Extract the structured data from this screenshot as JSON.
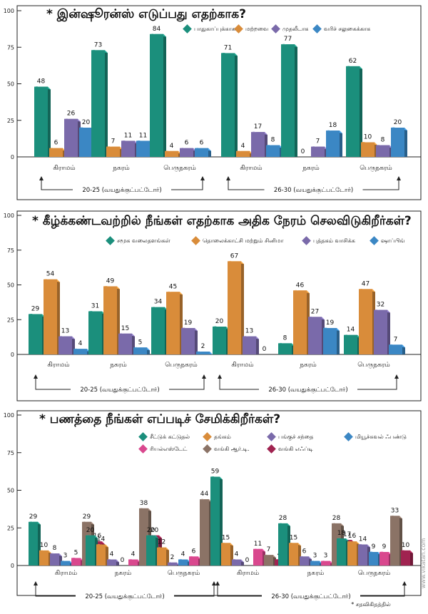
{
  "colors": {
    "teal": "#1b8f7c",
    "orange": "#d98c3a",
    "purple": "#7a6aaa",
    "blue": "#3b87c4",
    "pink": "#d9488e",
    "brown": "#8b7366",
    "maroon": "#a02350"
  },
  "footer": {
    "note": "* சதவிகிதத்தில்",
    "watermark": "www.vikatan.com"
  },
  "chart_data": [
    {
      "type": "bar",
      "title": "* இன்ஷூரன்ஸ் எடுப்பது எதற்காக?",
      "ylim": [
        0,
        100
      ],
      "yticks": [
        0,
        25,
        50,
        75,
        100
      ],
      "categories": [
        "கிராமம்",
        "நகரம்",
        "பெருநகரம்",
        "கிராமம்",
        "நகரம்",
        "பெருநகரம்"
      ],
      "groups": [
        "20-25 (வயதுக்குட்பட்டோர்)",
        "26-30 (வயதுக்குட்பட்டோர்)"
      ],
      "series": [
        {
          "name": "பாதுகாப்புக்காக",
          "color": "teal",
          "values": [
            48,
            73,
            84,
            71,
            77,
            62
          ]
        },
        {
          "name": "மற்றவை",
          "color": "orange",
          "values": [
            6,
            7,
            4,
            4,
            0,
            10
          ]
        },
        {
          "name": "முதலீடாக",
          "color": "purple",
          "values": [
            26,
            11,
            6,
            17,
            7,
            8
          ]
        },
        {
          "name": "வரிச் சலுகைக்காக",
          "color": "blue",
          "values": [
            20,
            11,
            6,
            8,
            18,
            20
          ]
        }
      ]
    },
    {
      "type": "bar",
      "title": "* கீழ்க்கண்டவற்றில் நீங்கள் எதற்காக அதிக நேரம் செலவிடுகிறீர்கள்?",
      "ylim": [
        0,
        100
      ],
      "yticks": [
        0,
        25,
        50,
        75,
        100
      ],
      "categories": [
        "கிராமம்",
        "நகரம்",
        "பெருநகரம்",
        "கிராமம்",
        "நகரம்",
        "பெருநகரம்"
      ],
      "groups": [
        "20-25 (வயதுக்குட்பட்டோர்)",
        "26-30 (வயதுக்குட்பட்டோர்)"
      ],
      "series": [
        {
          "name": "சமூக வலைதளங்கள்",
          "color": "teal",
          "values": [
            29,
            31,
            34,
            20,
            8,
            14
          ]
        },
        {
          "name": "தொலைக்காட்சி மற்றும் சினிமா",
          "color": "orange",
          "values": [
            54,
            49,
            45,
            67,
            46,
            47
          ]
        },
        {
          "name": "புத்தகம் வாசிக்க",
          "color": "purple",
          "values": [
            13,
            15,
            19,
            13,
            27,
            32
          ]
        },
        {
          "name": "ஷாப்பிங்",
          "color": "blue",
          "values": [
            4,
            5,
            2,
            0,
            19,
            7
          ]
        }
      ]
    },
    {
      "type": "bar",
      "title": "* பணத்தை நீங்கள் எப்படிச் சேமிக்கிறீர்கள்?",
      "ylim": [
        0,
        100
      ],
      "yticks": [
        0,
        25,
        50,
        75,
        100
      ],
      "categories": [
        "கிராமம்",
        "நகரம்",
        "பெருநகரம்",
        "கிராமம்",
        "நகரம்",
        "பெருநகரம்"
      ],
      "groups": [
        "20-25 (வயதுக்குட்பட்டோர்)",
        "26-30 (வயதுக்குட்பட்டோர்)"
      ],
      "series": [
        {
          "name": "சீட்டுக் கட்டுதல்",
          "color": "teal",
          "values": [
            29,
            20,
            20,
            59,
            28,
            18
          ]
        },
        {
          "name": "தங்கம்",
          "color": "orange",
          "values": [
            10,
            14,
            12,
            15,
            15,
            16
          ]
        },
        {
          "name": "பங்குச் சந்தை",
          "color": "purple",
          "values": [
            8,
            4,
            2,
            4,
            6,
            14
          ]
        },
        {
          "name": "மியூச்சுவல் ஃபண்டு",
          "color": "blue",
          "values": [
            3,
            0,
            4,
            0,
            3,
            9
          ]
        },
        {
          "name": "ரியல்எஸ்டேட்",
          "color": "pink",
          "values": [
            5,
            4,
            6,
            11,
            3,
            9
          ]
        },
        {
          "name": "வங்கி ஆர்.டி.",
          "color": "brown",
          "values": [
            29,
            38,
            44,
            7,
            28,
            33
          ]
        },
        {
          "name": "வங்கி எஃப்டி",
          "color": "maroon",
          "values": [
            16,
            20,
            12,
            4,
            17,
            10
          ]
        }
      ]
    }
  ]
}
